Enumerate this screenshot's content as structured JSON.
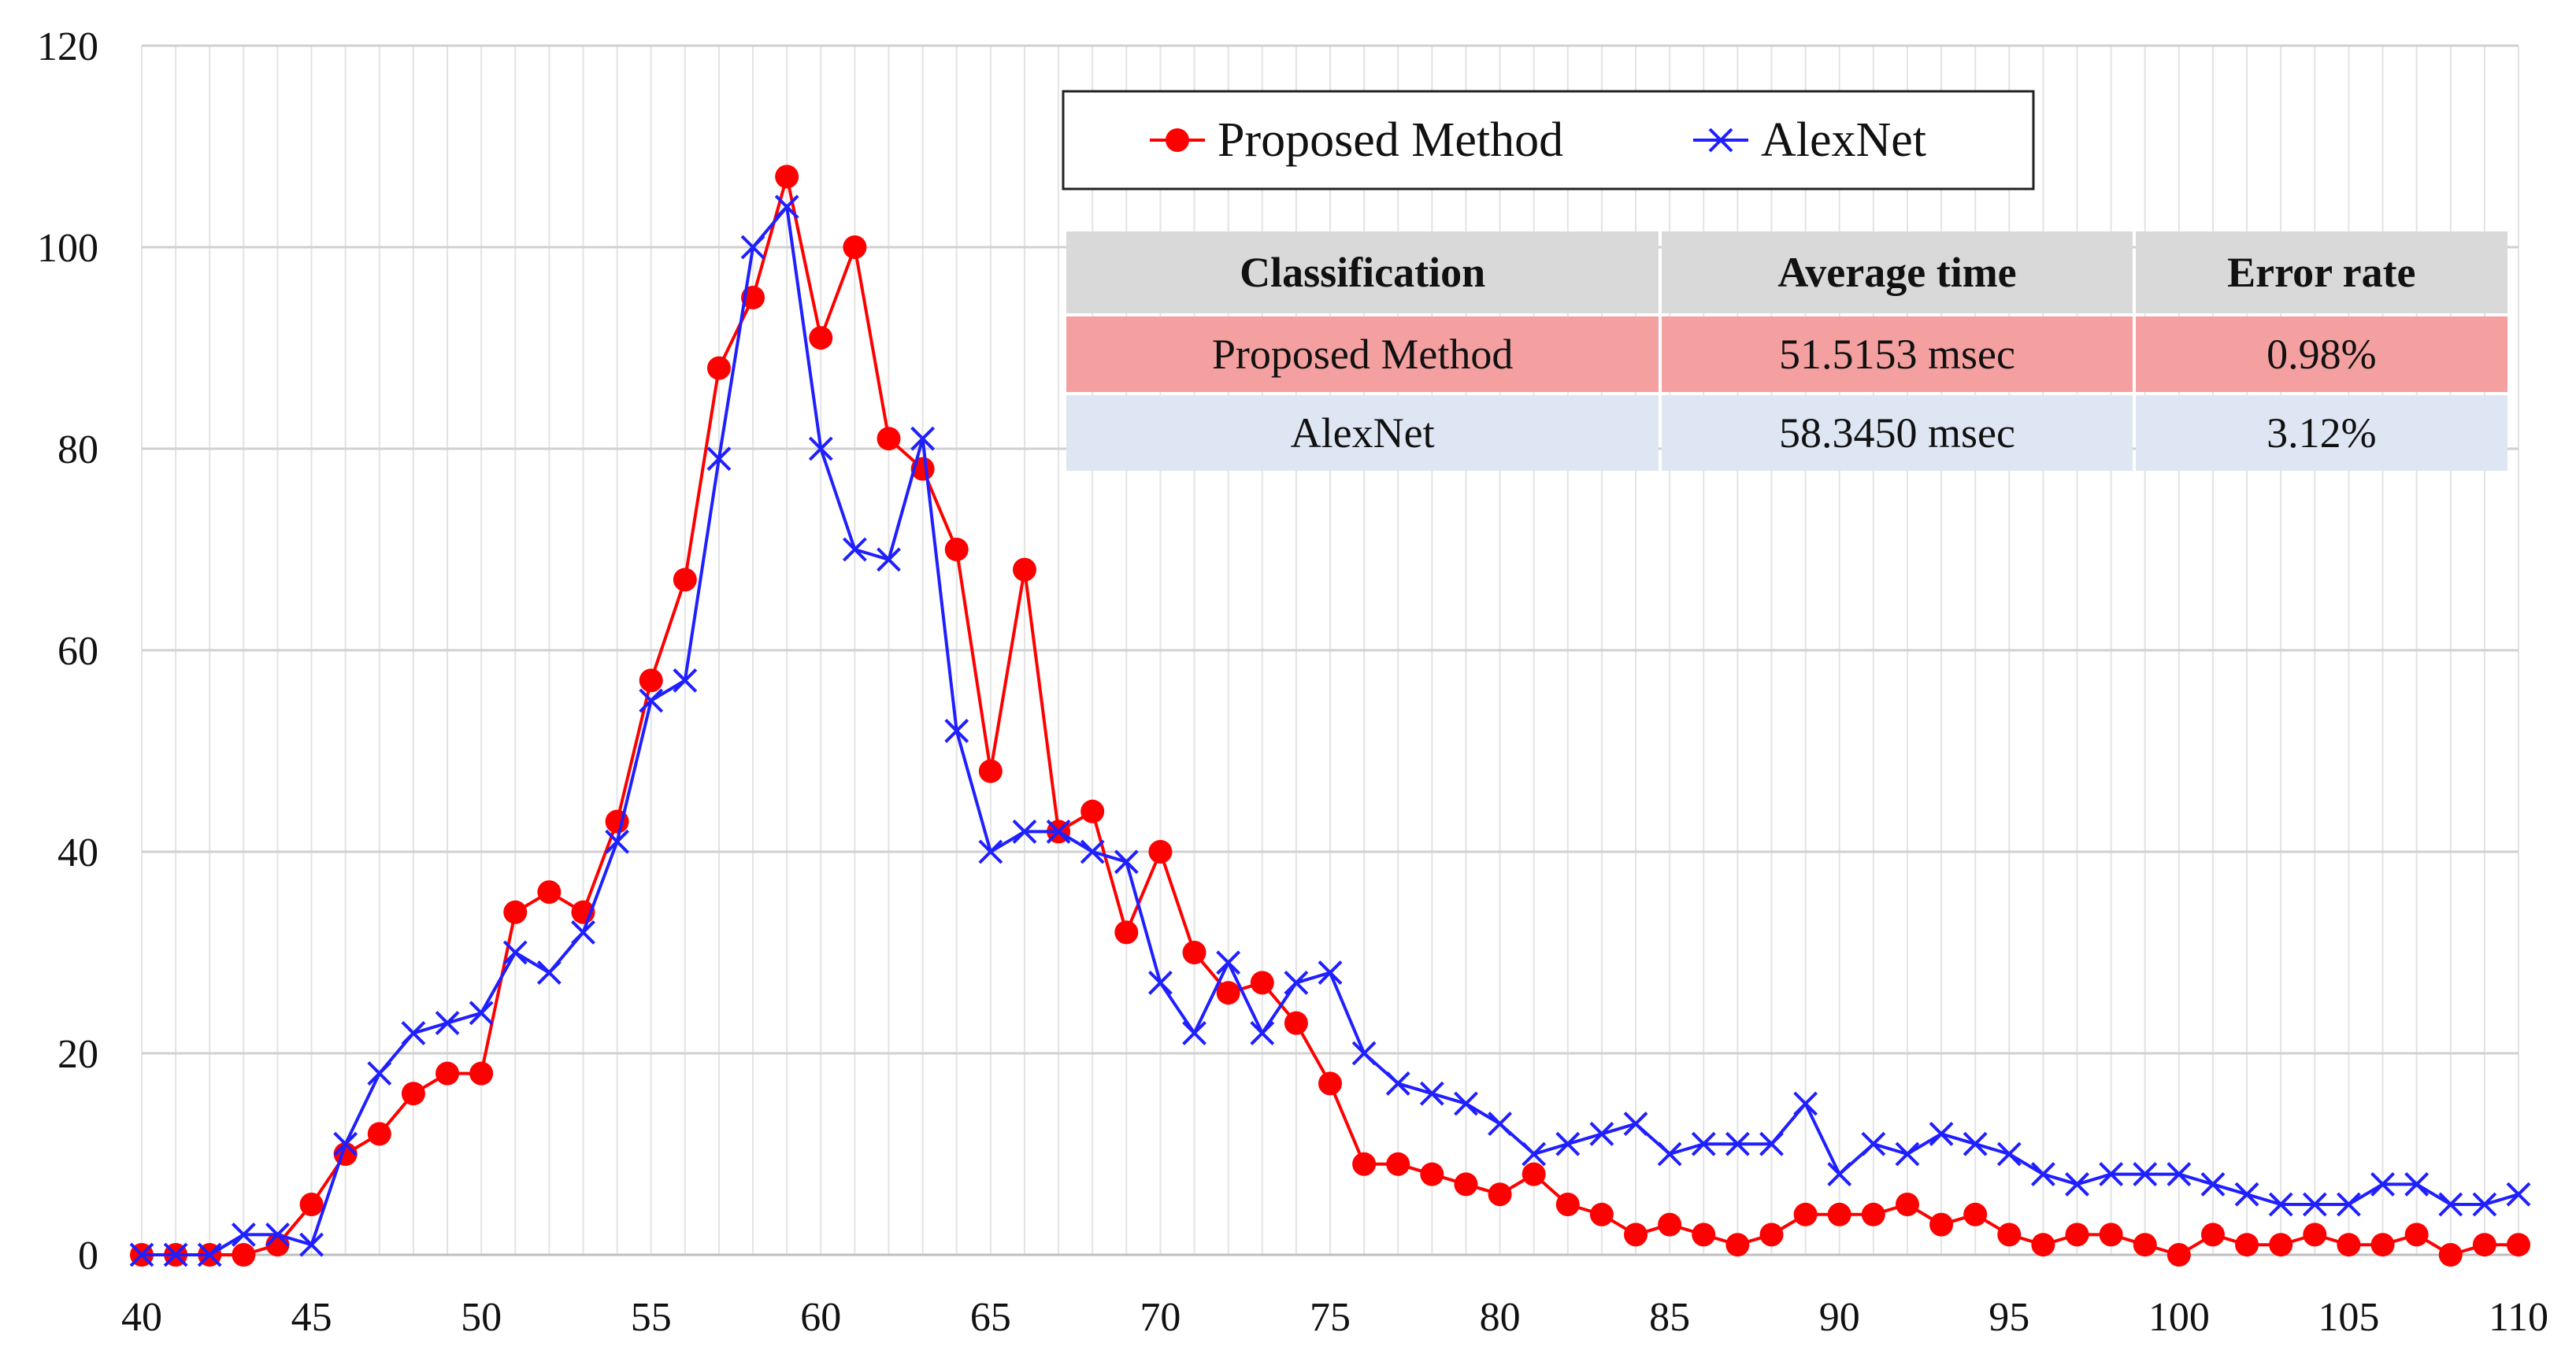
{
  "chart_data": {
    "type": "line",
    "title": "",
    "xlabel": "",
    "ylabel": "",
    "x": [
      40,
      41,
      42,
      43,
      44,
      45,
      46,
      47,
      48,
      49,
      50,
      51,
      52,
      53,
      54,
      55,
      56,
      57,
      58,
      59,
      60,
      61,
      62,
      63,
      64,
      65,
      66,
      67,
      68,
      69,
      70,
      71,
      72,
      73,
      74,
      75,
      76,
      77,
      78,
      79,
      80,
      81,
      82,
      83,
      84,
      85,
      86,
      87,
      88,
      89,
      90,
      91,
      92,
      93,
      94,
      95,
      96,
      97,
      98,
      99,
      100,
      101,
      102,
      103,
      104,
      105,
      106,
      107,
      108,
      109,
      110
    ],
    "xlim": [
      40,
      110
    ],
    "ylim": [
      0,
      120
    ],
    "xticks": [
      40,
      45,
      50,
      55,
      60,
      65,
      70,
      75,
      80,
      85,
      90,
      95,
      100,
      105,
      110
    ],
    "yticks": [
      0,
      20,
      40,
      60,
      80,
      100,
      120
    ],
    "grid": "vertical gridlines every 1 unit, horizontal every 20",
    "legend_position": "top-center",
    "series": [
      {
        "name": "Proposed Method",
        "color": "#ff0000",
        "marker": "circle",
        "values": [
          0,
          0,
          0,
          0,
          1,
          5,
          10,
          12,
          16,
          18,
          18,
          34,
          36,
          34,
          43,
          57,
          67,
          88,
          95,
          107,
          91,
          100,
          81,
          78,
          70,
          48,
          68,
          42,
          44,
          32,
          40,
          30,
          26,
          27,
          23,
          17,
          9,
          9,
          8,
          7,
          6,
          8,
          5,
          4,
          2,
          3,
          2,
          1,
          2,
          4,
          4,
          4,
          5,
          3,
          4,
          2,
          1,
          2,
          2,
          1,
          0,
          2,
          1,
          1,
          2,
          1,
          1,
          2,
          0,
          1,
          1
        ]
      },
      {
        "name": "AlexNet",
        "color": "#1f1fff",
        "marker": "x",
        "values": [
          0,
          0,
          0,
          2,
          2,
          1,
          11,
          18,
          22,
          23,
          24,
          30,
          28,
          32,
          41,
          55,
          57,
          79,
          100,
          104,
          80,
          70,
          69,
          81,
          52,
          40,
          42,
          42,
          40,
          39,
          27,
          22,
          29,
          22,
          27,
          28,
          20,
          17,
          16,
          15,
          13,
          10,
          11,
          12,
          13,
          10,
          11,
          11,
          11,
          15,
          8,
          11,
          10,
          12,
          11,
          10,
          8,
          7,
          8,
          8,
          8,
          7,
          6,
          5,
          5,
          5,
          7,
          7,
          5,
          5,
          6
        ]
      }
    ]
  },
  "table": {
    "headers": [
      "Classification",
      "Average time",
      "Error rate"
    ],
    "rows": [
      {
        "classification": "Proposed Method",
        "average_time": "51.5153 msec",
        "error_rate": "0.98%"
      },
      {
        "classification": "AlexNet",
        "average_time": "58.3450 msec",
        "error_rate": "3.12%"
      }
    ]
  }
}
